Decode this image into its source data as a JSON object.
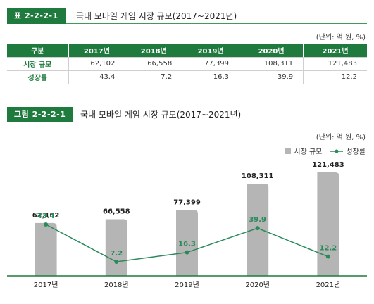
{
  "table_caption": {
    "tag": "표 2-2-2-1",
    "title": "국내 모바일 게임 시장 규모(2017~2021년)"
  },
  "table_unit": "(단위: 억 원, %)",
  "table": {
    "header": [
      "구분",
      "2017년",
      "2018년",
      "2019년",
      "2020년",
      "2021년"
    ],
    "rows": [
      {
        "label": "시장 규모",
        "values": [
          "62,102",
          "66,558",
          "77,399",
          "108,311",
          "121,483"
        ]
      },
      {
        "label": "성장률",
        "values": [
          "43.4",
          "7.2",
          "16.3",
          "39.9",
          "12.2"
        ]
      }
    ]
  },
  "figure_caption": {
    "tag": "그림 2-2-2-1",
    "title": "국내 모바일 게임 시장 규모(2017~2021년)"
  },
  "figure_unit": "(단위: 억 원, %)",
  "legend": {
    "bar": "시장 규모",
    "line": "성장률"
  },
  "colors": {
    "accent": "#1f7a3e",
    "bar": "#b5b5b5",
    "line": "#2a8a5a"
  },
  "chart_data": {
    "type": "bar",
    "categories": [
      "2017년",
      "2018년",
      "2019년",
      "2020년",
      "2021년"
    ],
    "series": [
      {
        "name": "시장 규모",
        "type": "bar",
        "values": [
          62102,
          66558,
          77399,
          108311,
          121483
        ],
        "labels": [
          "62,102",
          "66,558",
          "77,399",
          "108,311",
          "121,483"
        ]
      },
      {
        "name": "성장률",
        "type": "line",
        "values": [
          43.4,
          7.2,
          16.3,
          39.9,
          12.2
        ],
        "labels": [
          "43.4",
          "7.2",
          "16.3",
          "39.9",
          "12.2"
        ]
      }
    ],
    "legend_position": "top-right",
    "grid": false
  }
}
